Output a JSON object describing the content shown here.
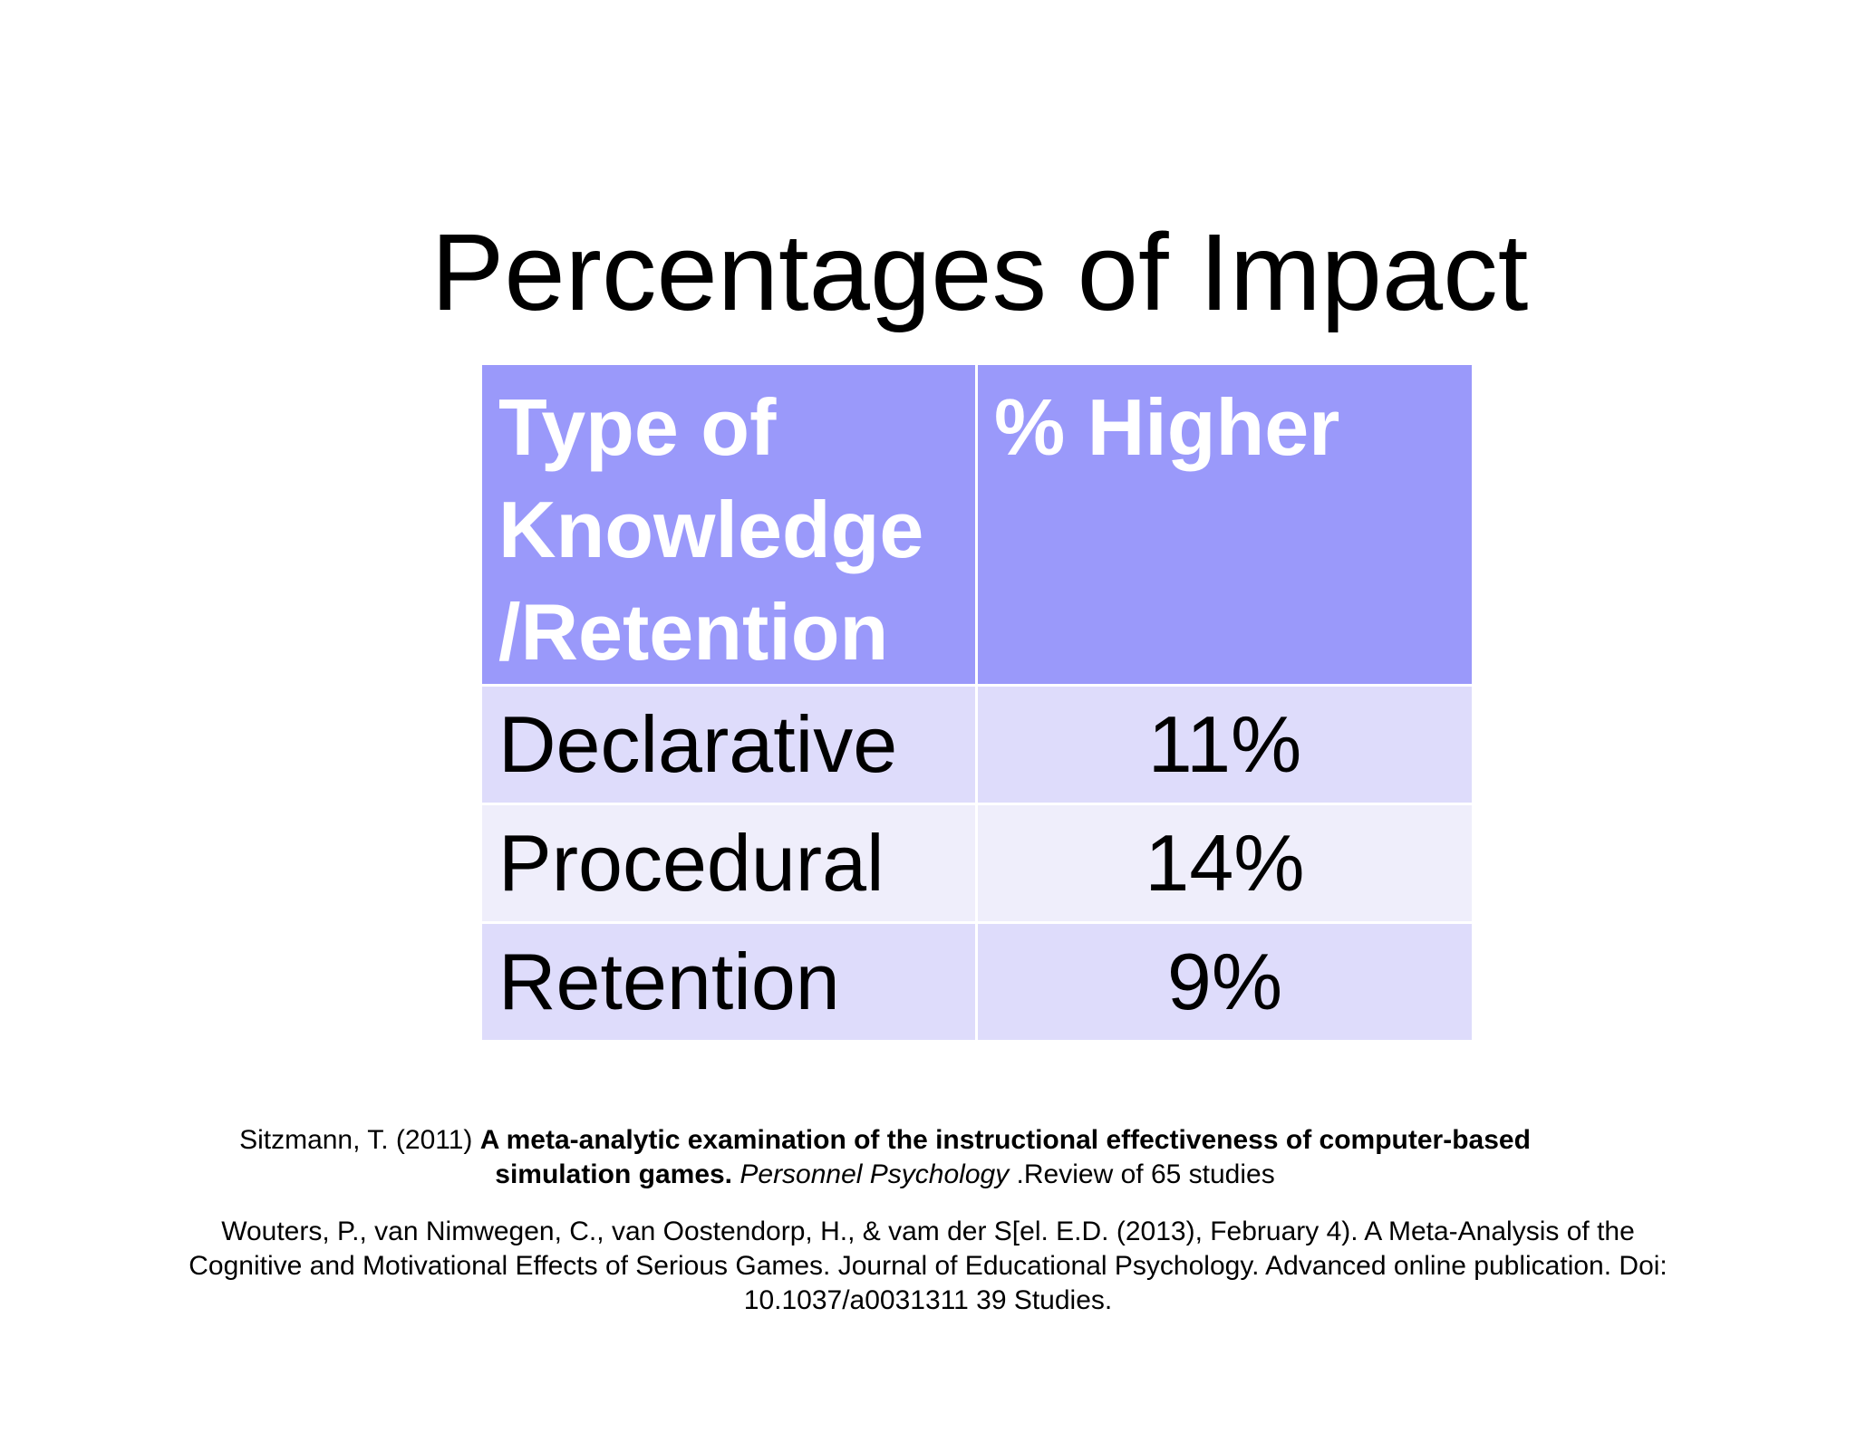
{
  "slide": {
    "title": "Percentages of Impact"
  },
  "table": {
    "header": {
      "col1_lines": [
        "Type of",
        "Knowledge",
        "/Retention"
      ],
      "col2": "% Higher"
    },
    "rows": [
      {
        "type": "Declarative",
        "percent": "11%"
      },
      {
        "type": "Procedural",
        "percent": "14%"
      },
      {
        "type": "Retention",
        "percent": "9%"
      }
    ]
  },
  "citations": {
    "sitzmann": {
      "authors": "Sitzmann, T. (2011) ",
      "title_line1": "A meta-analytic examination of the instructional effectiveness of computer-based",
      "title_line2": "simulation games.",
      "journal": "Personnel Psychology",
      "note": " .Review of 65 studies"
    },
    "wouters": {
      "line1": "Wouters, P., van Nimwegen, C., van Oostendorp, H., &  vam der S[el. E.D. (2013), February 4).  A Meta-Analysis of the",
      "line2": "Cognitive and Motivational Effects of Serious Games.  Journal of Educational Psychology.  Advanced online publication. Doi:",
      "line3": "10.1037/a0031311 39 Studies."
    }
  }
}
